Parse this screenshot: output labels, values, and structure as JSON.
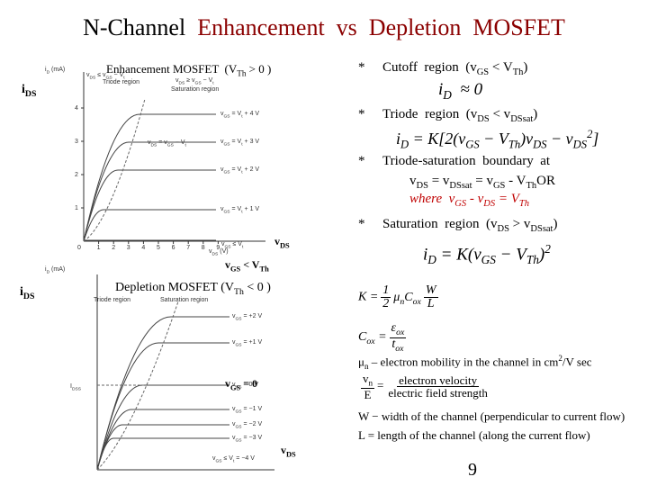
{
  "title": {
    "left": "N-Channel",
    "right": "Enhancement  vs  Depletion  MOSFET"
  },
  "enhancement": {
    "caption": [
      "Enhancement MOSFET  (V",
      {
        "sub": "Th"
      },
      " > 0 )"
    ],
    "y_axis_label": [
      "i",
      {
        "sub": "D"
      },
      " (mA)"
    ],
    "current_label": [
      "i",
      {
        "sub": "DS"
      }
    ],
    "triode_region": "Triode region",
    "saturation_region": "Saturation region",
    "triode_condition": [
      "v",
      {
        "sub": "DS"
      },
      " ≤ v",
      {
        "sub": "GS"
      },
      " − V",
      {
        "sub": "t"
      }
    ],
    "saturation_condition": [
      "v",
      {
        "sub": "DS"
      },
      " ≥ v",
      {
        "sub": "GS"
      },
      " − V",
      {
        "sub": "t"
      }
    ],
    "boundary_label": [
      "v",
      {
        "sub": "DS"
      },
      " = v",
      {
        "sub": "GS"
      },
      " − V",
      {
        "sub": "t"
      }
    ],
    "y_ticks": [
      "1",
      "2",
      "3",
      "4"
    ],
    "x_ticks": [
      "1",
      "2",
      "3",
      "4",
      "5",
      "6",
      "7",
      "8",
      "9"
    ],
    "origin": "0",
    "x_axis_label": [
      "v",
      {
        "sub": "DS"
      },
      " (V)"
    ],
    "curve_labels": [
      [
        "v",
        {
          "sub": "GS"
        },
        " = V",
        {
          "sub": "t"
        },
        " + 4 V"
      ],
      [
        "v",
        {
          "sub": "GS"
        },
        " = V",
        {
          "sub": "t"
        },
        " + 3 V"
      ],
      [
        "v",
        {
          "sub": "GS"
        },
        " = V",
        {
          "sub": "t"
        },
        " + 2 V"
      ],
      [
        "v",
        {
          "sub": "GS"
        },
        " = V",
        {
          "sub": "t"
        },
        " + 1 V"
      ]
    ],
    "cutoff_label": [
      "v",
      {
        "sub": "GS"
      },
      " ≤ V",
      {
        "sub": "t"
      }
    ],
    "vds_label": [
      "v",
      {
        "sub": "DS"
      }
    ],
    "vgs_condition": [
      "v",
      {
        "sub": "GS"
      },
      " < V",
      {
        "sub": "Th"
      }
    ]
  },
  "depletion": {
    "caption": [
      "Depletion MOSFET (V",
      {
        "sub": "Th"
      },
      " < 0 )"
    ],
    "y_axis_label": [
      "i",
      {
        "sub": "D"
      },
      " (mA)"
    ],
    "current_label": [
      "i",
      {
        "sub": "DS"
      }
    ],
    "triode_region": "Triode region",
    "saturation_region": "Saturation region",
    "idss_label": [
      "I",
      {
        "sub": "DSS"
      }
    ],
    "curve_labels": [
      [
        "v",
        {
          "sub": "GS"
        },
        " = +2 V"
      ],
      [
        "v",
        {
          "sub": "GS"
        },
        " = +1 V"
      ],
      [
        "v",
        {
          "sub": "GS"
        },
        " = 0 V"
      ],
      [
        "v",
        {
          "sub": "GS"
        },
        " = −1 V"
      ],
      [
        "v",
        {
          "sub": "GS"
        },
        " = −2 V"
      ],
      [
        "v",
        {
          "sub": "GS"
        },
        " = −3 V"
      ]
    ],
    "cutoff_label": [
      "v",
      {
        "sub": "GS"
      },
      " ≤ V",
      {
        "sub": "t"
      },
      " = −4 V"
    ],
    "vgs_zero": [
      "v",
      {
        "sub": "GS"
      },
      " = 0"
    ],
    "vds_label": [
      "v",
      {
        "sub": "DS"
      }
    ]
  },
  "regions": {
    "cutoff": [
      "Cutoff  region  (v",
      {
        "sub": "GS"
      },
      " < V",
      {
        "sub": "Th"
      },
      ")"
    ],
    "cutoff_eq": [
      "i",
      {
        "sub": "D"
      },
      "  ≈ 0"
    ],
    "triode": [
      "Triode  region  (v",
      {
        "sub": "DS"
      },
      " < v",
      {
        "sub": "DSsat"
      },
      ")"
    ],
    "triode_eq": [
      "i",
      {
        "sub": "D"
      },
      " = K[2(v",
      {
        "sub": "GS"
      },
      " − V",
      {
        "sub": "Th"
      },
      ")v",
      {
        "sub": "DS"
      },
      " − v",
      {
        "sub": "DS"
      },
      {
        "sup": "2"
      },
      "]"
    ],
    "boundary": "Triode-saturation  boundary  at",
    "boundary_eq": [
      "v",
      {
        "sub": "DS"
      },
      " = v",
      {
        "sub": "DSsat"
      },
      " = v",
      {
        "sub": "GS"
      },
      " - V",
      {
        "sub": "Th"
      },
      "OR"
    ],
    "boundary_where": [
      "where  v",
      {
        "sub": "GS"
      },
      " - v",
      {
        "sub": "DS"
      },
      " = V",
      {
        "sub": "Th"
      }
    ],
    "saturation": [
      "Saturation  region  (v",
      {
        "sub": "DS"
      },
      " > v",
      {
        "sub": "DSsat"
      },
      ")"
    ],
    "saturation_eq": [
      "i",
      {
        "sub": "D"
      },
      " = K(v",
      {
        "sub": "GS"
      },
      " − V",
      {
        "sub": "Th"
      },
      ")",
      {
        "sup": "2"
      }
    ],
    "bullet": "*"
  },
  "formulas": {
    "k_lhs": "K =",
    "k_half_num": "1",
    "k_half_den": "2",
    "k_mu": [
      "μ",
      {
        "sub": "n"
      }
    ],
    "k_cox": [
      "C",
      {
        "sub": "ox"
      }
    ],
    "k_w": "W",
    "k_l": "L",
    "cox_lhs": [
      "C",
      {
        "sub": "ox"
      },
      " ="
    ],
    "cox_num": [
      "ε",
      {
        "sub": "ox"
      }
    ],
    "cox_den": [
      "t",
      {
        "sub": "ox"
      }
    ],
    "mobility": [
      "μ",
      {
        "sub": "n"
      },
      " – electron mobility in the channel in ",
      {
        "sup": ""
      },
      "cm",
      {
        "sup": "2"
      },
      "/V sec"
    ],
    "vel_num": [
      "v",
      {
        "sub": "n"
      }
    ],
    "vel_den": "E",
    "vel_eq": "=",
    "vel_text_num": "electron velocity",
    "vel_text_den": "electric field strength",
    "width": "W − width of the channel (perpendicular to current flow)",
    "length": "L = length of the channel (along the current flow)"
  },
  "page_number": "9"
}
